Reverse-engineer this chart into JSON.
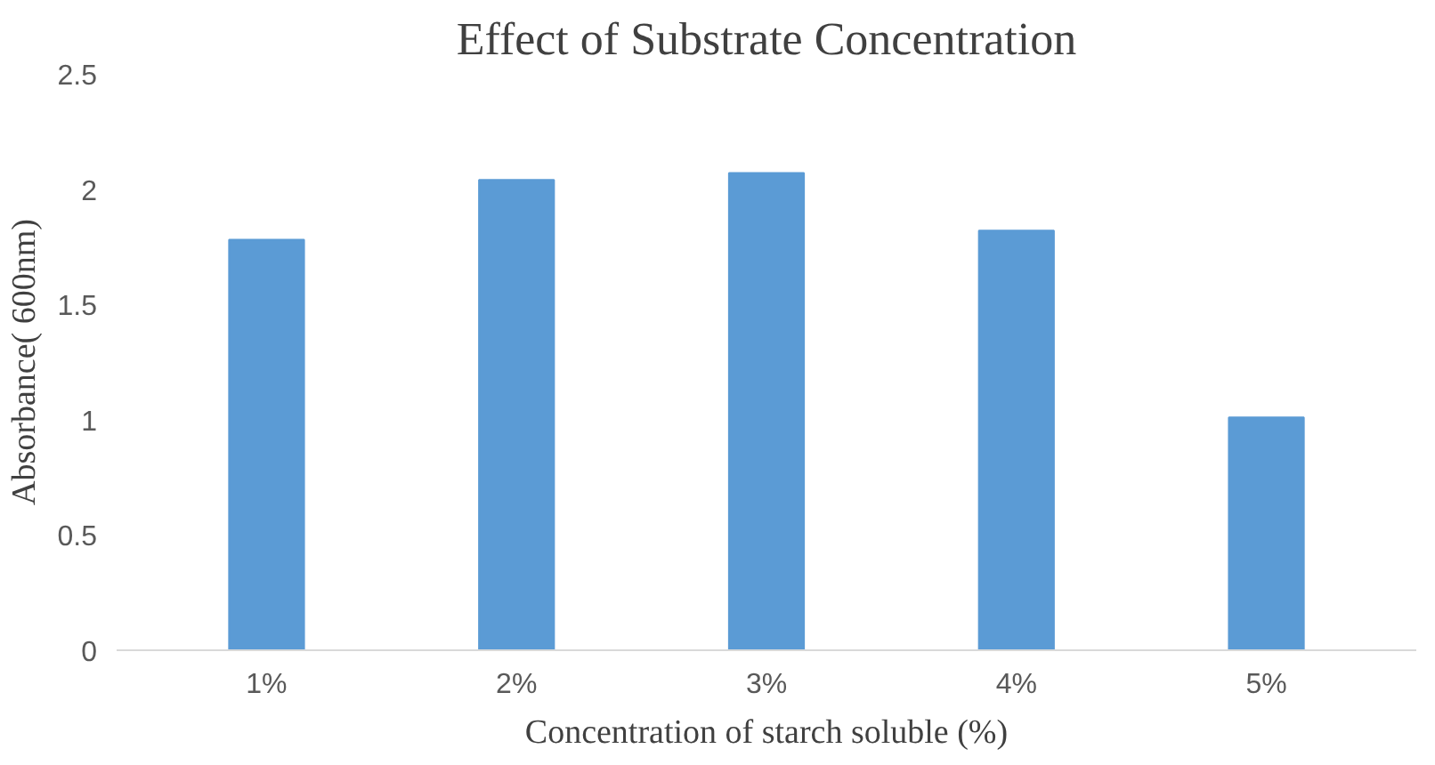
{
  "chart_data": {
    "type": "bar",
    "title": "Effect of Substrate Concentration",
    "xlabel": "Concentration of starch soluble (%)",
    "ylabel": "Absorbance( 600nm)",
    "categories": [
      "1%",
      "2%",
      "3%",
      "4%",
      "5%"
    ],
    "values": [
      1.78,
      2.04,
      2.07,
      1.82,
      1.01
    ],
    "color": "#5b9bd5",
    "ylim": [
      0,
      2.5
    ],
    "yticks": [
      0,
      0.5,
      1,
      1.5,
      2,
      2.5
    ],
    "grid": false
  }
}
